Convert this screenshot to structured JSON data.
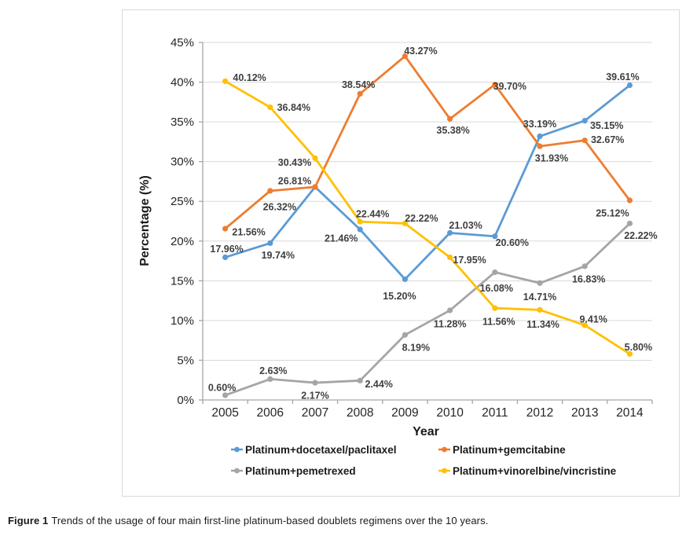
{
  "figure": {
    "caption_label": "Figure 1",
    "caption_text": "Trends of the usage of four main first-line platinum-based doublets regimens over the 10 years."
  },
  "chart_data": {
    "type": "line",
    "title": "",
    "xlabel": "Year",
    "ylabel": "Percentage (%)",
    "x": [
      "2005",
      "2006",
      "2007",
      "2008",
      "2009",
      "2010",
      "2011",
      "2012",
      "2013",
      "2014"
    ],
    "ylim": [
      0,
      45
    ],
    "ytick_step": 5,
    "ytick_labels": [
      "0%",
      "5%",
      "10%",
      "15%",
      "20%",
      "25%",
      "30%",
      "35%",
      "40%",
      "45%"
    ],
    "grid": "horizontal-only",
    "legend_position": "bottom-two-columns",
    "colors": {
      "axis": "#a6a6a6",
      "gridline": "#d9d9d9",
      "tick_text": "#262626",
      "data_label": "#3f3f3f"
    },
    "series": [
      {
        "name": "Platinum+docetaxel/paclitaxel",
        "color": "#5B9BD5",
        "values": [
          17.96,
          19.74,
          26.81,
          21.46,
          15.2,
          21.03,
          20.6,
          33.19,
          35.15,
          39.61
        ],
        "labels": [
          "17.96%",
          "19.74%",
          "",
          "21.46%",
          "15.20%",
          "21.03%",
          "20.60%",
          "33.19%",
          "35.15%",
          "39.61%"
        ],
        "label_offsets": [
          [
            2,
            -11
          ],
          [
            10,
            15
          ],
          [
            0,
            0
          ],
          [
            -24,
            11
          ],
          [
            -7,
            21
          ],
          [
            20,
            -10
          ],
          [
            22,
            8
          ],
          [
            0,
            -16
          ],
          [
            28,
            6
          ],
          [
            -9,
            -11
          ]
        ]
      },
      {
        "name": "Platinum+gemcitabine",
        "color": "#ED7D31",
        "values": [
          21.56,
          26.32,
          26.81,
          38.54,
          43.27,
          35.38,
          39.7,
          31.93,
          32.67,
          25.12
        ],
        "labels": [
          "21.56%",
          "26.32%",
          "26.81%",
          "38.54%",
          "43.27%",
          "35.38%",
          "39.70%",
          "31.93%",
          "32.67%",
          "25.12%"
        ],
        "label_offsets": [
          [
            30,
            4
          ],
          [
            12,
            20
          ],
          [
            -26,
            -8
          ],
          [
            -2,
            -12
          ],
          [
            20,
            -7
          ],
          [
            4,
            14
          ],
          [
            19,
            2
          ],
          [
            15,
            15
          ],
          [
            29,
            -1
          ],
          [
            -22,
            16
          ]
        ]
      },
      {
        "name": "Platinum+pemetrexed",
        "color": "#A5A5A5",
        "values": [
          0.6,
          2.63,
          2.17,
          2.44,
          8.19,
          11.28,
          16.08,
          14.71,
          16.83,
          22.22
        ],
        "labels": [
          "0.60%",
          "2.63%",
          "2.17%",
          "2.44%",
          "8.19%",
          "11.28%",
          "16.08%",
          "14.71%",
          "16.83%",
          "22.22%"
        ],
        "label_offsets": [
          [
            -4,
            -10
          ],
          [
            4,
            -11
          ],
          [
            0,
            16
          ],
          [
            24,
            4
          ],
          [
            14,
            16
          ],
          [
            0,
            17
          ],
          [
            2,
            20
          ],
          [
            0,
            17
          ],
          [
            5,
            16
          ],
          [
            14,
            15
          ]
        ]
      },
      {
        "name": "Platinum+vinorelbine/vincristine",
        "color": "#FFC000",
        "values": [
          40.12,
          36.84,
          30.43,
          22.44,
          22.22,
          17.95,
          11.56,
          11.34,
          9.41,
          5.8
        ],
        "labels": [
          "40.12%",
          "36.84%",
          "30.43%",
          "22.44%",
          "22.22%",
          "17.95%",
          "11.56%",
          "11.34%",
          "9.41%",
          "5.80%"
        ],
        "label_offsets": [
          [
            31,
            -5
          ],
          [
            30,
            0
          ],
          [
            -26,
            5
          ],
          [
            16,
            -10
          ],
          [
            21,
            -7
          ],
          [
            25,
            3
          ],
          [
            5,
            17
          ],
          [
            4,
            18
          ],
          [
            11,
            -8
          ],
          [
            11,
            -9
          ]
        ]
      }
    ]
  }
}
